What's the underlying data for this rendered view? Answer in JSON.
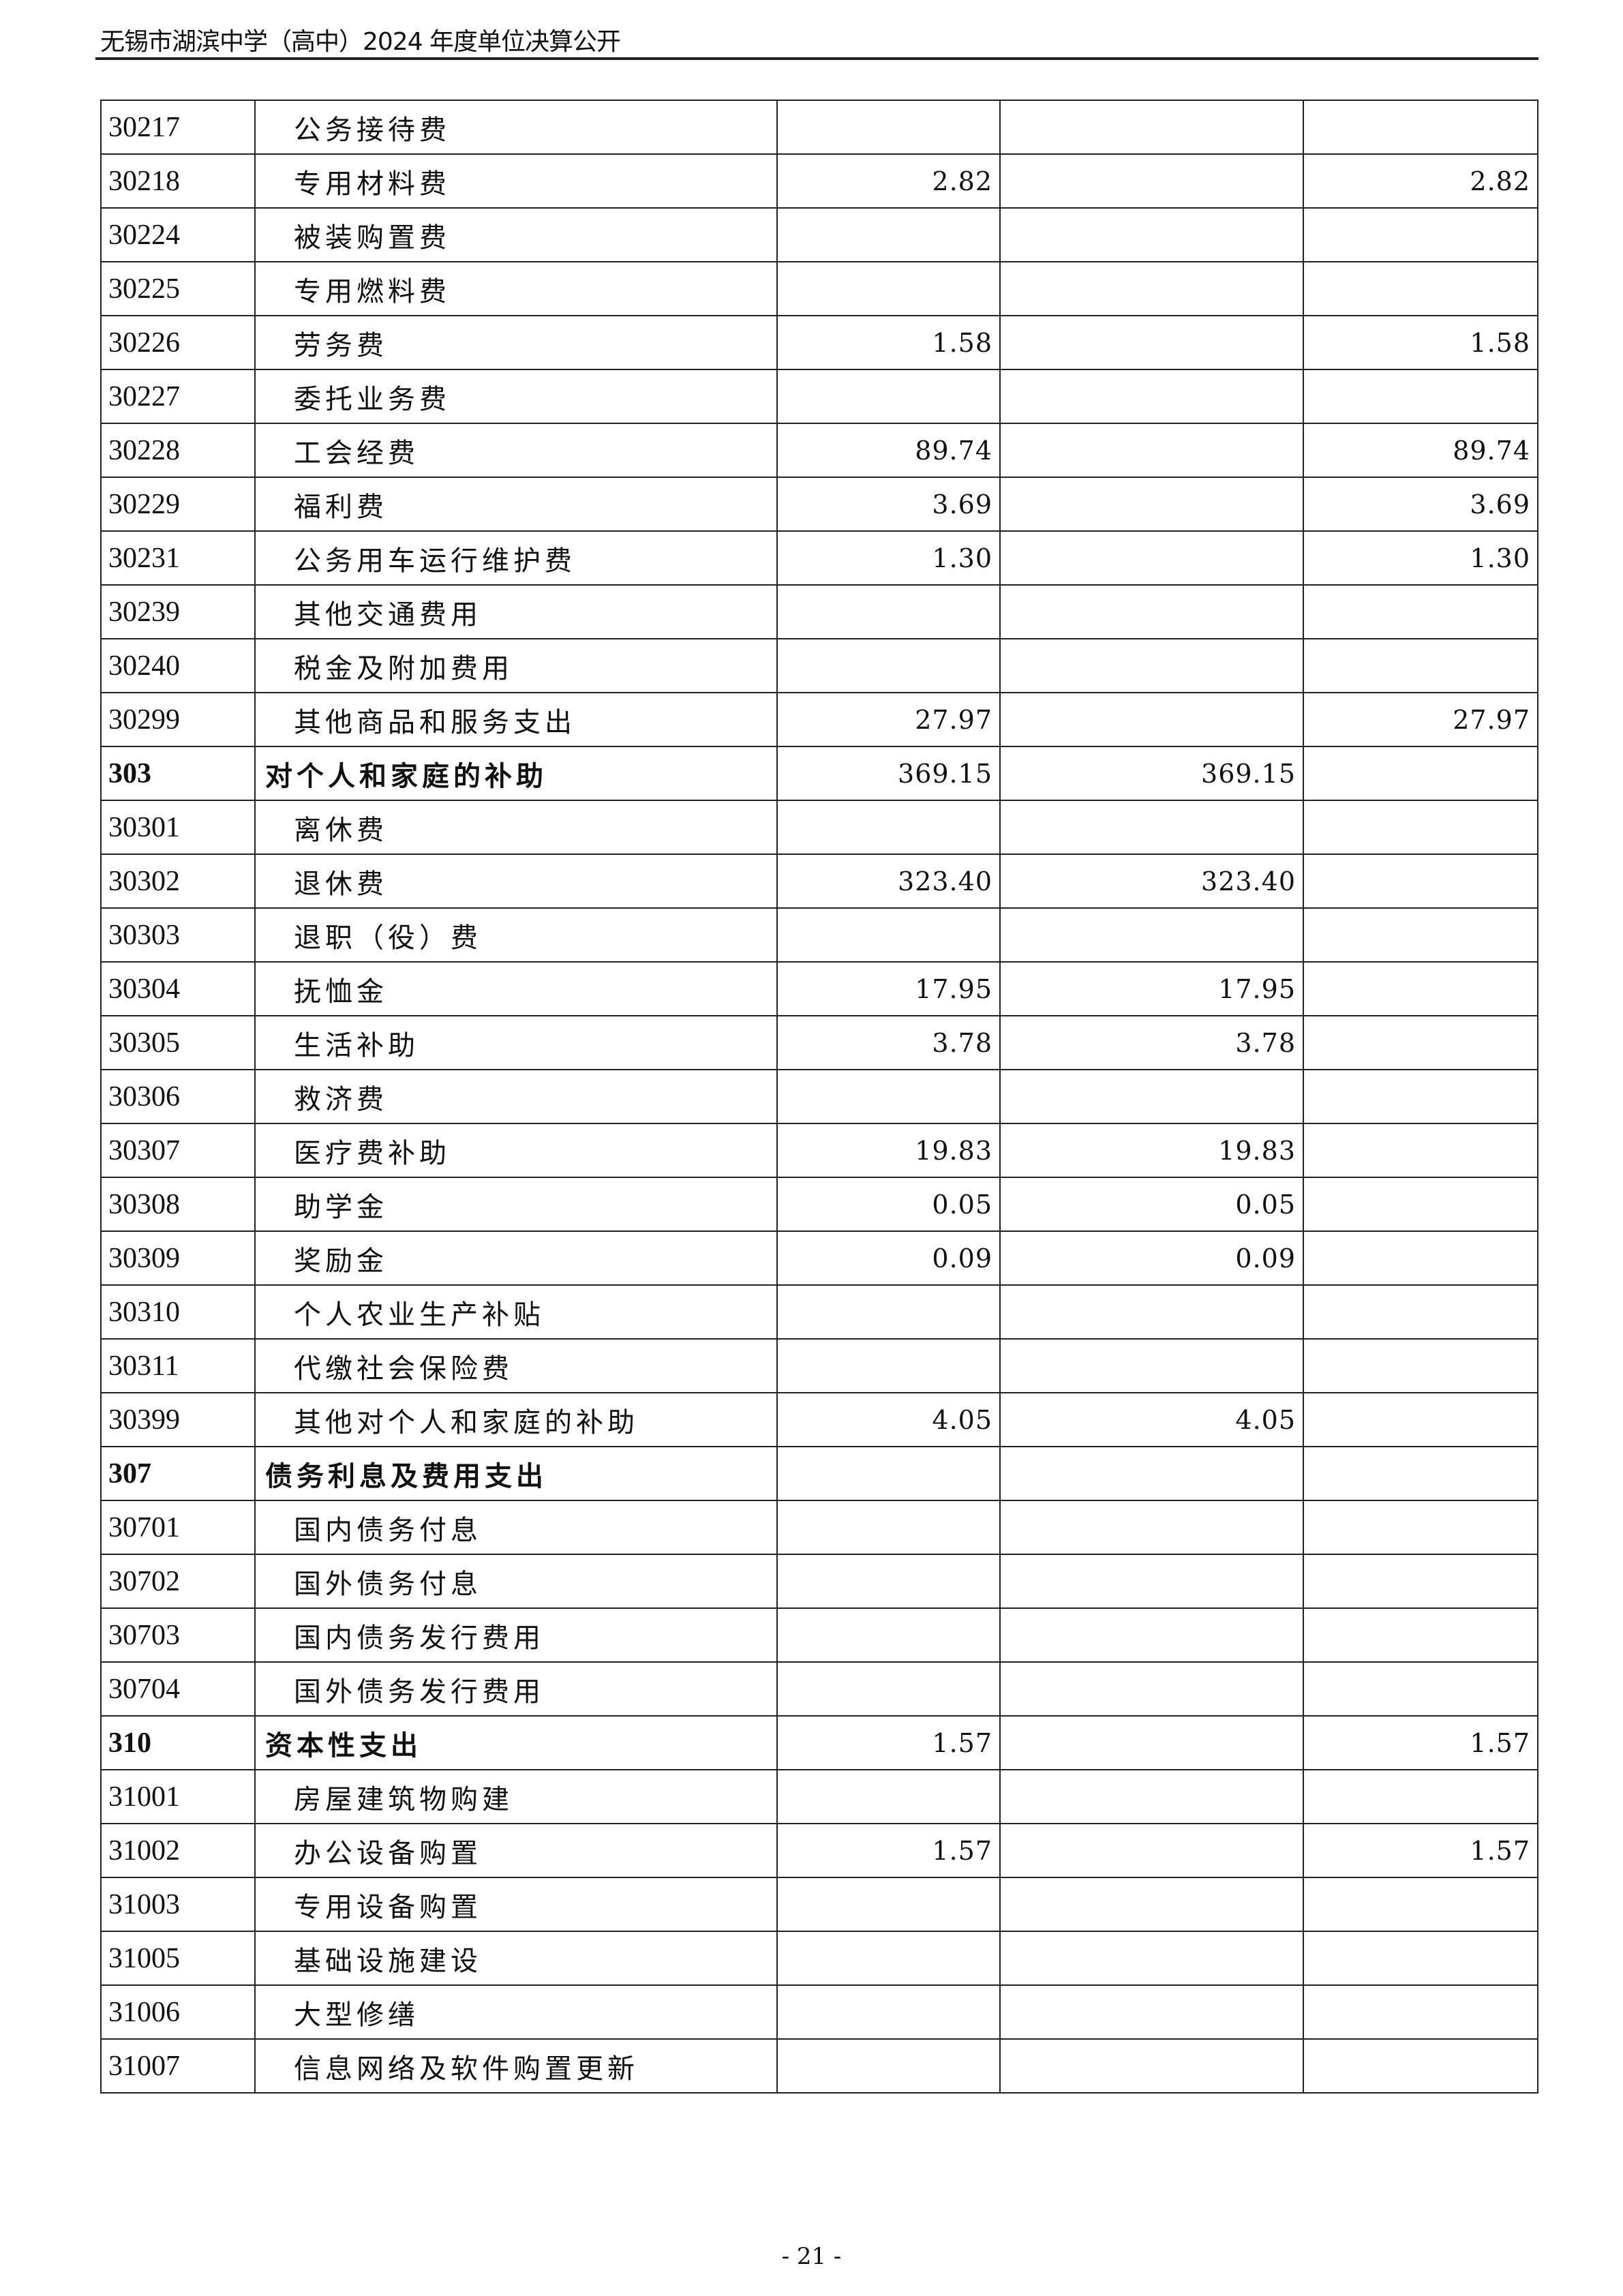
{
  "header": {
    "title": "无锡市湖滨中学（高中）2024 年度单位决算公开"
  },
  "rows": [
    {
      "code": "30217",
      "name": "公务接待费",
      "c1": "",
      "c2": "",
      "c3": ""
    },
    {
      "code": "30218",
      "name": "专用材料费",
      "c1": "2.82",
      "c2": "",
      "c3": "2.82"
    },
    {
      "code": "30224",
      "name": "被装购置费",
      "c1": "",
      "c2": "",
      "c3": ""
    },
    {
      "code": "30225",
      "name": "专用燃料费",
      "c1": "",
      "c2": "",
      "c3": ""
    },
    {
      "code": "30226",
      "name": "劳务费",
      "c1": "1.58",
      "c2": "",
      "c3": "1.58"
    },
    {
      "code": "30227",
      "name": "委托业务费",
      "c1": "",
      "c2": "",
      "c3": ""
    },
    {
      "code": "30228",
      "name": "工会经费",
      "c1": "89.74",
      "c2": "",
      "c3": "89.74"
    },
    {
      "code": "30229",
      "name": "福利费",
      "c1": "3.69",
      "c2": "",
      "c3": "3.69"
    },
    {
      "code": "30231",
      "name": "公务用车运行维护费",
      "c1": "1.30",
      "c2": "",
      "c3": "1.30"
    },
    {
      "code": "30239",
      "name": "其他交通费用",
      "c1": "",
      "c2": "",
      "c3": ""
    },
    {
      "code": "30240",
      "name": "税金及附加费用",
      "c1": "",
      "c2": "",
      "c3": ""
    },
    {
      "code": "30299",
      "name": "其他商品和服务支出",
      "c1": "27.97",
      "c2": "",
      "c3": "27.97"
    },
    {
      "code": "303",
      "name": "对个人和家庭的补助",
      "c1": "369.15",
      "c2": "369.15",
      "c3": "",
      "category": true
    },
    {
      "code": "30301",
      "name": "离休费",
      "c1": "",
      "c2": "",
      "c3": ""
    },
    {
      "code": "30302",
      "name": "退休费",
      "c1": "323.40",
      "c2": "323.40",
      "c3": ""
    },
    {
      "code": "30303",
      "name": "退职（役）费",
      "c1": "",
      "c2": "",
      "c3": ""
    },
    {
      "code": "30304",
      "name": "抚恤金",
      "c1": "17.95",
      "c2": "17.95",
      "c3": ""
    },
    {
      "code": "30305",
      "name": "生活补助",
      "c1": "3.78",
      "c2": "3.78",
      "c3": ""
    },
    {
      "code": "30306",
      "name": "救济费",
      "c1": "",
      "c2": "",
      "c3": ""
    },
    {
      "code": "30307",
      "name": "医疗费补助",
      "c1": "19.83",
      "c2": "19.83",
      "c3": ""
    },
    {
      "code": "30308",
      "name": "助学金",
      "c1": "0.05",
      "c2": "0.05",
      "c3": ""
    },
    {
      "code": "30309",
      "name": "奖励金",
      "c1": "0.09",
      "c2": "0.09",
      "c3": ""
    },
    {
      "code": "30310",
      "name": "个人农业生产补贴",
      "c1": "",
      "c2": "",
      "c3": ""
    },
    {
      "code": "30311",
      "name": "代缴社会保险费",
      "c1": "",
      "c2": "",
      "c3": ""
    },
    {
      "code": "30399",
      "name": "其他对个人和家庭的补助",
      "c1": "4.05",
      "c2": "4.05",
      "c3": ""
    },
    {
      "code": "307",
      "name": "债务利息及费用支出",
      "c1": "",
      "c2": "",
      "c3": "",
      "category": true
    },
    {
      "code": "30701",
      "name": "国内债务付息",
      "c1": "",
      "c2": "",
      "c3": ""
    },
    {
      "code": "30702",
      "name": "国外债务付息",
      "c1": "",
      "c2": "",
      "c3": ""
    },
    {
      "code": "30703",
      "name": "国内债务发行费用",
      "c1": "",
      "c2": "",
      "c3": ""
    },
    {
      "code": "30704",
      "name": "国外债务发行费用",
      "c1": "",
      "c2": "",
      "c3": ""
    },
    {
      "code": "310",
      "name": "资本性支出",
      "c1": "1.57",
      "c2": "",
      "c3": "1.57",
      "category": true
    },
    {
      "code": "31001",
      "name": "房屋建筑物购建",
      "c1": "",
      "c2": "",
      "c3": ""
    },
    {
      "code": "31002",
      "name": "办公设备购置",
      "c1": "1.57",
      "c2": "",
      "c3": "1.57"
    },
    {
      "code": "31003",
      "name": "专用设备购置",
      "c1": "",
      "c2": "",
      "c3": ""
    },
    {
      "code": "31005",
      "name": "基础设施建设",
      "c1": "",
      "c2": "",
      "c3": ""
    },
    {
      "code": "31006",
      "name": "大型修缮",
      "c1": "",
      "c2": "",
      "c3": ""
    },
    {
      "code": "31007",
      "name": "信息网络及软件购置更新",
      "c1": "",
      "c2": "",
      "c3": ""
    }
  ],
  "footer": {
    "page": "- 21 -"
  }
}
